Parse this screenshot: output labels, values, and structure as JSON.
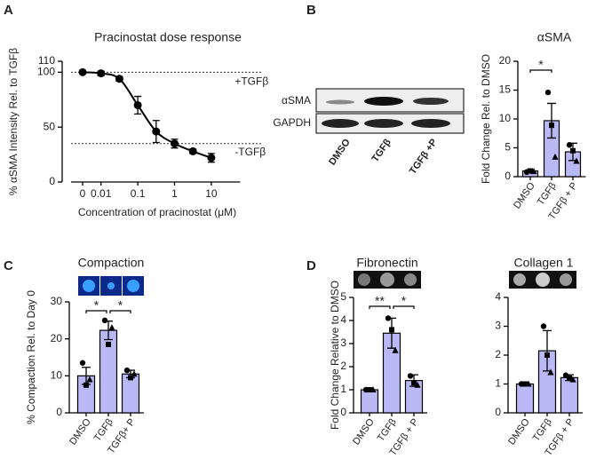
{
  "panel_letters": [
    "A",
    "B",
    "C",
    "D"
  ],
  "blot": {
    "rows": [
      "αSMA",
      "GAPDH"
    ],
    "lanes": [
      "DMSO",
      "TGFβ",
      "TGFβ +P"
    ]
  },
  "chart_data": [
    {
      "type": "line",
      "title": "Pracinostat dose response",
      "x_label": "Concentration of pracinostat (μM)",
      "y_label": "% αSMA Intensity Rel. to TGFβ",
      "categories": [
        "0",
        "0.01",
        null,
        "0.1",
        null,
        "1",
        null,
        "10"
      ],
      "values": [
        100,
        99,
        94,
        70,
        46,
        35,
        28,
        22
      ],
      "errors": [
        1,
        2,
        2,
        8,
        10,
        4,
        2,
        4
      ],
      "ylim": [
        0,
        110
      ],
      "yticks": [
        0,
        50,
        100,
        110
      ],
      "color": "#000000",
      "reference_lines": [
        {
          "value": 100,
          "label": "+TGFβ"
        },
        {
          "value": 35,
          "label": "-TGFβ"
        }
      ]
    },
    {
      "type": "bar",
      "title": "αSMA",
      "y_label": "Fold Change Rel. to DMSO",
      "categories": [
        "DMSO",
        "TGFβ",
        "TGFβ + P"
      ],
      "values": [
        1,
        9.7,
        4.3
      ],
      "errors": [
        0.2,
        3,
        1.5
      ],
      "points": [
        [
          0.8,
          1,
          0.9
        ],
        [
          14.6,
          8.9,
          3.4
        ],
        [
          5.5,
          4.5,
          2.7
        ]
      ],
      "ylim": [
        0,
        20
      ],
      "yticks": [
        0,
        5,
        10,
        15,
        20
      ],
      "color": "#b9b9f5",
      "significance": [
        {
          "from": 0,
          "to": 1,
          "label": "*"
        }
      ]
    },
    {
      "type": "bar",
      "title": "Compaction",
      "y_label": "% Compaction Rel. to Day 0",
      "categories": [
        "DMSO",
        "TGFβ",
        "TGFβ+ P"
      ],
      "values": [
        10,
        22.3,
        10.5
      ],
      "errors": [
        2.3,
        2.5,
        1
      ],
      "points": [
        [
          13.5,
          7.5,
          9
        ],
        [
          25,
          18.5,
          23
        ],
        [
          11.5,
          9.5,
          10.5
        ]
      ],
      "ylim": [
        0,
        30
      ],
      "yticks": [
        0,
        10,
        20,
        30
      ],
      "color": "#b9b9f5",
      "significance": [
        {
          "from": 0,
          "to": 1,
          "label": "*"
        },
        {
          "from": 1,
          "to": 2,
          "label": "*"
        }
      ]
    },
    {
      "type": "bar",
      "title": "Fibronectin",
      "y_label": "Fold Change Relative to DMSO",
      "categories": [
        "DMSO",
        "TGFβ",
        "TGFβ + P"
      ],
      "values": [
        1,
        3.45,
        1.4
      ],
      "errors": [
        0.03,
        0.65,
        0.25
      ],
      "points": [
        [
          1,
          1,
          1
        ],
        [
          4.1,
          3.6,
          2.7
        ],
        [
          1.6,
          1.3,
          1.2
        ]
      ],
      "ylim": [
        0,
        5
      ],
      "yticks": [
        0,
        1,
        2,
        3,
        4,
        5
      ],
      "color": "#b9b9f5",
      "significance": [
        {
          "from": 0,
          "to": 1,
          "label": "**"
        },
        {
          "from": 1,
          "to": 2,
          "label": "*"
        }
      ]
    },
    {
      "type": "bar",
      "title": "Collagen 1",
      "categories": [
        "DMSO",
        "TGFβ",
        "TGFβ + P"
      ],
      "values": [
        1,
        2.15,
        1.22
      ],
      "errors": [
        0.03,
        0.7,
        0.1
      ],
      "points": [
        [
          1,
          1,
          1
        ],
        [
          3,
          2,
          1.4
        ],
        [
          1.3,
          1.2,
          1.15
        ]
      ],
      "ylim": [
        0,
        4
      ],
      "yticks": [
        0,
        1,
        2,
        3,
        4
      ],
      "color": "#b9b9f5"
    }
  ]
}
